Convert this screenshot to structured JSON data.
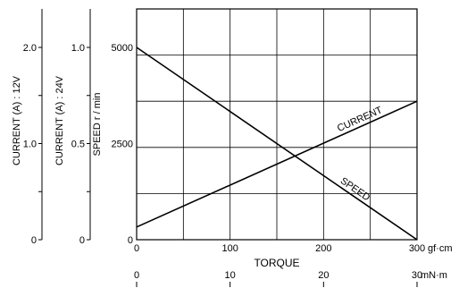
{
  "chart_data": {
    "type": "line",
    "axes": {
      "speed": {
        "label": "SPEED r / min",
        "ylim": [
          0,
          6000
        ],
        "ticks": [
          0,
          2500,
          5000
        ],
        "tick_labels": [
          "0",
          "2500",
          "5000"
        ]
      },
      "current_24v": {
        "label": "CURRENT (A) : 24V",
        "ylim": [
          0,
          1.2
        ],
        "ticks": [
          0,
          0.5,
          1.0
        ],
        "tick_labels": [
          "0",
          "0.5",
          "1.0"
        ]
      },
      "current_12v": {
        "label": "CURRENT (A) : 12V",
        "ylim": [
          0,
          2.4
        ],
        "ticks": [
          0,
          1.0,
          2.0
        ],
        "tick_labels": [
          "0",
          "1.0",
          "2.0"
        ]
      },
      "torque_gfcm": {
        "label": "TORQUE",
        "unit": "gf·cm",
        "xlim": [
          0,
          300
        ],
        "ticks": [
          0,
          100,
          200,
          300
        ],
        "tick_labels": [
          "0",
          "100",
          "200",
          "300"
        ]
      },
      "torque_mnm": {
        "unit": "mN·m",
        "xlim": [
          0,
          30
        ],
        "ticks": [
          0,
          10,
          20,
          30
        ],
        "tick_labels": [
          "0",
          "10",
          "20",
          "30"
        ]
      }
    },
    "grid": true,
    "series": [
      {
        "name": "SPEED",
        "x_axis": "torque_gfcm",
        "y_axis": "speed",
        "x": [
          0,
          300
        ],
        "y": [
          5000,
          0
        ]
      },
      {
        "name": "CURRENT",
        "x_axis": "torque_gfcm",
        "y_axis": "speed",
        "x": [
          0,
          300
        ],
        "y": [
          330,
          3600
        ]
      }
    ]
  }
}
